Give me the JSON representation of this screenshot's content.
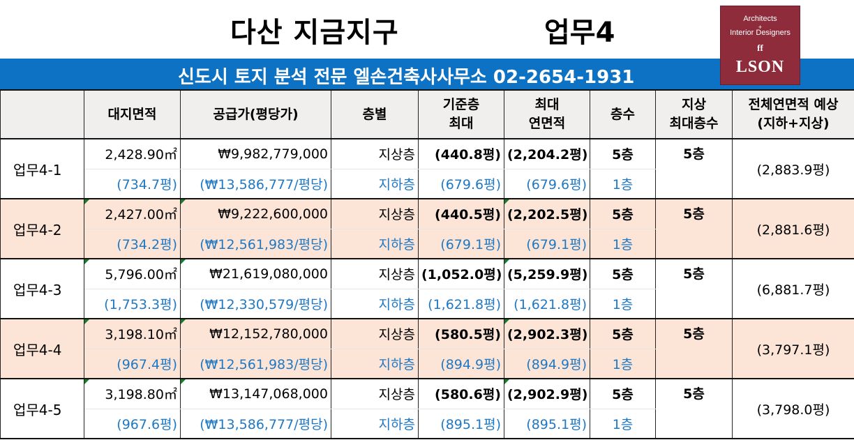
{
  "title": {
    "main": "다산 지금지구",
    "zone": "업무4"
  },
  "banner": "신도시 토지 분석 전문 엘손건축사사무소 02-2654-1931",
  "logo": {
    "line1": "Architects",
    "plus": "+",
    "line2": "Interior Designers",
    "mark": "ff",
    "name": "LSON"
  },
  "headers": {
    "blank": "",
    "area": "대지면적",
    "price": "공급가(평당가)",
    "layer": "층별",
    "base_max_1": "기준층",
    "base_max_2": "최대",
    "max_floor_area_1": "최대",
    "max_floor_area_2": "연면적",
    "floors": "층수",
    "max_above_1": "지상",
    "max_above_2": "최대층수",
    "total_1": "전체연면적 예상",
    "total_2": "(지하+지상)"
  },
  "rows": [
    {
      "name": "업무4-1",
      "area": "2,428.90㎡",
      "area_py": "(734.7평)",
      "price": "₩9,982,779,000",
      "price_per": "(₩13,586,777/평당)",
      "above": "지상층",
      "below": "지하층",
      "base_above": "(440.8평)",
      "base_below": "(679.6평)",
      "gfa_above": "(2,204.2평)",
      "gfa_below": "(679.6평)",
      "fl_above": "5층",
      "fl_below": "1층",
      "max_above": "5층",
      "total": "(2,883.9평)"
    },
    {
      "name": "업무4-2",
      "area": "2,427.00㎡",
      "area_py": "(734.2평)",
      "price": "₩9,222,600,000",
      "price_per": "(₩12,561,983/평당)",
      "above": "지상층",
      "below": "지하층",
      "base_above": "(440.5평)",
      "base_below": "(679.1평)",
      "gfa_above": "(2,202.5평)",
      "gfa_below": "(679.1평)",
      "fl_above": "5층",
      "fl_below": "1층",
      "max_above": "5층",
      "total": "(2,881.6평)"
    },
    {
      "name": "업무4-3",
      "area": "5,796.00㎡",
      "area_py": "(1,753.3평)",
      "price": "₩21,619,080,000",
      "price_per": "(₩12,330,579/평당)",
      "above": "지상층",
      "below": "지하층",
      "base_above": "(1,052.0평)",
      "base_below": "(1,621.8평)",
      "gfa_above": "(5,259.9평)",
      "gfa_below": "(1,621.8평)",
      "fl_above": "5층",
      "fl_below": "1층",
      "max_above": "5층",
      "total": "(6,881.7평)"
    },
    {
      "name": "업무4-4",
      "area": "3,198.10㎡",
      "area_py": "(967.4평)",
      "price": "₩12,152,780,000",
      "price_per": "(₩12,561,983/평당)",
      "above": "지상층",
      "below": "지하층",
      "base_above": "(580.5평)",
      "base_below": "(894.9평)",
      "gfa_above": "(2,902.3평)",
      "gfa_below": "(894.9평)",
      "fl_above": "5층",
      "fl_below": "1층",
      "max_above": "5층",
      "total": "(3,797.1평)"
    },
    {
      "name": "업무4-5",
      "area": "3,198.80㎡",
      "area_py": "(967.6평)",
      "price": "₩13,147,068,000",
      "price_per": "(₩13,586,777/평당)",
      "above": "지상층",
      "below": "지하층",
      "base_above": "(580.6평)",
      "base_below": "(895.1평)",
      "gfa_above": "(2,902.9평)",
      "gfa_below": "(895.1평)",
      "fl_above": "5층",
      "fl_below": "1층",
      "max_above": "5층",
      "total": "(3,798.0평)"
    }
  ]
}
